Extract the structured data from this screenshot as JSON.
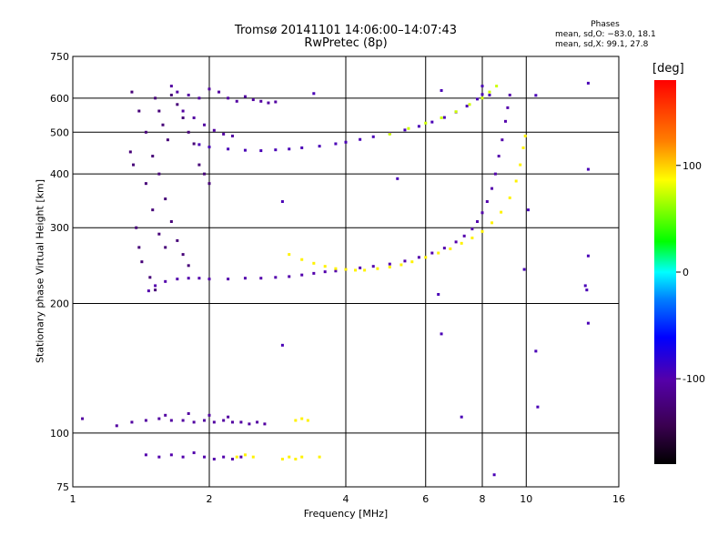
{
  "title": {
    "line1": "Tromsø 20141101 14:06:00–14:07:43",
    "line2": "RwPretec (8p)"
  },
  "phases": {
    "heading": "Phases",
    "line1": "mean, sd,O: −83.0, 18.1",
    "line2": "mean, sd,X:  99.1, 27.8"
  },
  "colors": {
    "grid": "#000000",
    "background": "#ffffff"
  },
  "chart_data": {
    "type": "scatter",
    "xlabel": "Frequency [MHz]",
    "ylabel": "Stationary phase Virtual Height [km]",
    "x_scale": "log",
    "y_scale": "log",
    "xlim": [
      1,
      16
    ],
    "ylim": [
      75,
      750
    ],
    "x_ticks": [
      1,
      2,
      4,
      6,
      8,
      10,
      16
    ],
    "y_ticks": [
      75,
      100,
      200,
      300,
      400,
      500,
      600,
      750
    ],
    "grid": true,
    "colorbar": {
      "label": "[deg]",
      "range": [
        -180,
        180
      ],
      "ticks": [
        -100,
        0,
        100
      ]
    },
    "series": [
      {
        "points": [
          [
            1.47,
            214
          ],
          [
            1.52,
            220
          ],
          [
            1.6,
            225
          ],
          [
            1.7,
            228
          ],
          [
            1.8,
            229
          ],
          [
            1.9,
            229
          ],
          [
            2.0,
            228
          ],
          [
            2.2,
            228
          ],
          [
            2.4,
            229
          ],
          [
            2.6,
            229
          ],
          [
            2.8,
            230
          ],
          [
            3.0,
            231
          ],
          [
            3.2,
            233
          ],
          [
            3.4,
            235
          ],
          [
            3.6,
            237
          ],
          [
            3.8,
            238
          ],
          [
            4.0,
            240
          ],
          [
            4.3,
            242
          ],
          [
            4.6,
            244
          ],
          [
            5.0,
            247
          ],
          [
            5.4,
            251
          ],
          [
            5.8,
            256
          ],
          [
            6.2,
            262
          ],
          [
            6.6,
            269
          ],
          [
            7.0,
            278
          ],
          [
            7.3,
            287
          ],
          [
            7.6,
            298
          ],
          [
            7.8,
            310
          ],
          [
            8.0,
            325
          ],
          [
            8.2,
            345
          ],
          [
            8.4,
            370
          ],
          [
            8.55,
            400
          ],
          [
            8.7,
            440
          ],
          [
            8.85,
            480
          ],
          [
            9.0,
            530
          ],
          [
            9.1,
            570
          ],
          [
            9.2,
            610
          ]
        ],
        "phase": -100
      },
      {
        "points": [
          [
            3.0,
            260
          ],
          [
            3.2,
            253
          ],
          [
            3.4,
            248
          ],
          [
            3.6,
            244
          ],
          [
            3.8,
            241
          ],
          [
            4.0,
            240
          ],
          [
            4.2,
            239
          ],
          [
            4.4,
            239
          ],
          [
            4.7,
            241
          ],
          [
            5.0,
            243
          ],
          [
            5.3,
            246
          ],
          [
            5.6,
            250
          ],
          [
            6.0,
            256
          ],
          [
            6.4,
            262
          ],
          [
            6.8,
            268
          ],
          [
            7.2,
            276
          ],
          [
            7.6,
            284
          ],
          [
            8.0,
            294
          ],
          [
            8.4,
            308
          ],
          [
            8.8,
            326
          ],
          [
            9.2,
            352
          ],
          [
            9.5,
            385
          ],
          [
            9.7,
            420
          ],
          [
            9.85,
            460
          ],
          [
            9.95,
            490
          ]
        ],
        "phase": 90
      },
      {
        "points": [
          [
            1.9,
            468
          ],
          [
            2.0,
            462
          ],
          [
            2.2,
            457
          ],
          [
            2.4,
            454
          ],
          [
            2.6,
            453
          ],
          [
            2.8,
            455
          ],
          [
            3.0,
            457
          ],
          [
            3.2,
            460
          ],
          [
            3.5,
            464
          ],
          [
            3.8,
            470
          ],
          [
            4.0,
            474
          ],
          [
            4.3,
            481
          ],
          [
            4.6,
            488
          ],
          [
            5.0,
            497
          ],
          [
            5.4,
            506
          ],
          [
            5.8,
            516
          ],
          [
            6.2,
            528
          ],
          [
            6.6,
            541
          ],
          [
            7.0,
            557
          ],
          [
            7.4,
            575
          ],
          [
            7.8,
            597
          ],
          [
            8.0,
            612
          ]
        ],
        "phase": -95
      },
      {
        "points": [
          [
            5.0,
            495
          ],
          [
            5.5,
            510
          ],
          [
            6.0,
            525
          ],
          [
            6.5,
            540
          ],
          [
            7.0,
            558
          ],
          [
            7.5,
            580
          ],
          [
            8.0,
            600
          ],
          [
            8.3,
            620
          ],
          [
            8.6,
            640
          ]
        ],
        "phase": 75
      },
      {
        "points": [
          [
            1.35,
            620
          ],
          [
            1.4,
            560
          ],
          [
            1.45,
            500
          ],
          [
            1.5,
            440
          ],
          [
            1.55,
            400
          ],
          [
            1.6,
            350
          ],
          [
            1.65,
            310
          ],
          [
            1.7,
            280
          ],
          [
            1.75,
            260
          ],
          [
            1.8,
            245
          ],
          [
            1.45,
            380
          ],
          [
            1.5,
            330
          ],
          [
            1.55,
            290
          ],
          [
            1.6,
            270
          ],
          [
            1.38,
            300
          ],
          [
            1.4,
            270
          ],
          [
            1.42,
            250
          ],
          [
            1.48,
            230
          ],
          [
            1.52,
            215
          ],
          [
            1.34,
            450
          ],
          [
            1.36,
            420
          ],
          [
            1.62,
            480
          ],
          [
            1.58,
            520
          ],
          [
            1.55,
            560
          ],
          [
            1.52,
            600
          ],
          [
            1.65,
            610
          ],
          [
            1.7,
            580
          ],
          [
            1.75,
            540
          ],
          [
            1.8,
            500
          ],
          [
            1.85,
            470
          ],
          [
            1.9,
            420
          ],
          [
            1.95,
            400
          ],
          [
            2.0,
            380
          ]
        ],
        "phase": -125
      },
      {
        "points": [
          [
            1.65,
            640
          ],
          [
            1.7,
            620
          ],
          [
            1.8,
            610
          ],
          [
            1.9,
            600
          ],
          [
            2.0,
            630
          ],
          [
            2.1,
            620
          ],
          [
            2.2,
            600
          ],
          [
            2.3,
            590
          ],
          [
            2.4,
            605
          ],
          [
            2.5,
            595
          ],
          [
            2.6,
            590
          ],
          [
            2.7,
            585
          ],
          [
            2.8,
            588
          ],
          [
            1.75,
            560
          ],
          [
            1.85,
            540
          ],
          [
            1.95,
            520
          ],
          [
            2.05,
            505
          ],
          [
            2.15,
            495
          ],
          [
            2.25,
            490
          ]
        ],
        "phase": -105
      },
      {
        "points": [
          [
            1.05,
            108
          ],
          [
            1.25,
            104
          ],
          [
            1.35,
            106
          ],
          [
            1.45,
            107
          ],
          [
            1.55,
            108
          ],
          [
            1.65,
            107
          ],
          [
            1.75,
            107
          ],
          [
            1.85,
            106
          ],
          [
            1.95,
            107
          ],
          [
            2.05,
            106
          ],
          [
            2.15,
            107
          ],
          [
            2.25,
            106
          ],
          [
            2.35,
            106
          ],
          [
            2.45,
            105
          ],
          [
            2.55,
            106
          ],
          [
            2.65,
            105
          ],
          [
            1.6,
            110
          ],
          [
            1.8,
            111
          ],
          [
            2.0,
            110
          ],
          [
            2.2,
            109
          ]
        ],
        "phase": -105
      },
      {
        "points": [
          [
            1.45,
            89
          ],
          [
            1.55,
            88
          ],
          [
            1.65,
            89
          ],
          [
            1.75,
            88
          ],
          [
            1.85,
            90
          ],
          [
            1.95,
            88
          ],
          [
            2.05,
            87
          ],
          [
            2.15,
            88
          ],
          [
            2.25,
            87
          ],
          [
            2.35,
            88
          ]
        ],
        "phase": -100
      },
      {
        "points": [
          [
            2.3,
            88
          ],
          [
            2.4,
            89
          ],
          [
            2.5,
            88
          ],
          [
            2.9,
            87
          ],
          [
            3.0,
            88
          ],
          [
            3.1,
            87
          ],
          [
            3.2,
            88
          ],
          [
            3.5,
            88
          ],
          [
            3.1,
            107
          ],
          [
            3.2,
            108
          ],
          [
            3.3,
            107
          ]
        ],
        "phase": 90
      },
      {
        "points": [
          [
            8.0,
            640
          ],
          [
            8.3,
            610
          ],
          [
            6.5,
            625
          ],
          [
            5.2,
            390
          ],
          [
            6.5,
            170
          ],
          [
            6.4,
            210
          ],
          [
            7.2,
            109
          ],
          [
            10.5,
            609
          ],
          [
            10.5,
            155
          ],
          [
            10.6,
            115
          ],
          [
            10.1,
            330
          ],
          [
            9.9,
            240
          ],
          [
            13.7,
            650
          ],
          [
            13.7,
            410
          ],
          [
            13.7,
            258
          ],
          [
            13.7,
            180
          ],
          [
            13.6,
            215
          ],
          [
            13.5,
            220
          ],
          [
            2.9,
            345
          ],
          [
            2.9,
            160
          ],
          [
            3.4,
            615
          ],
          [
            8.5,
            80
          ]
        ],
        "phase": -95
      }
    ]
  }
}
